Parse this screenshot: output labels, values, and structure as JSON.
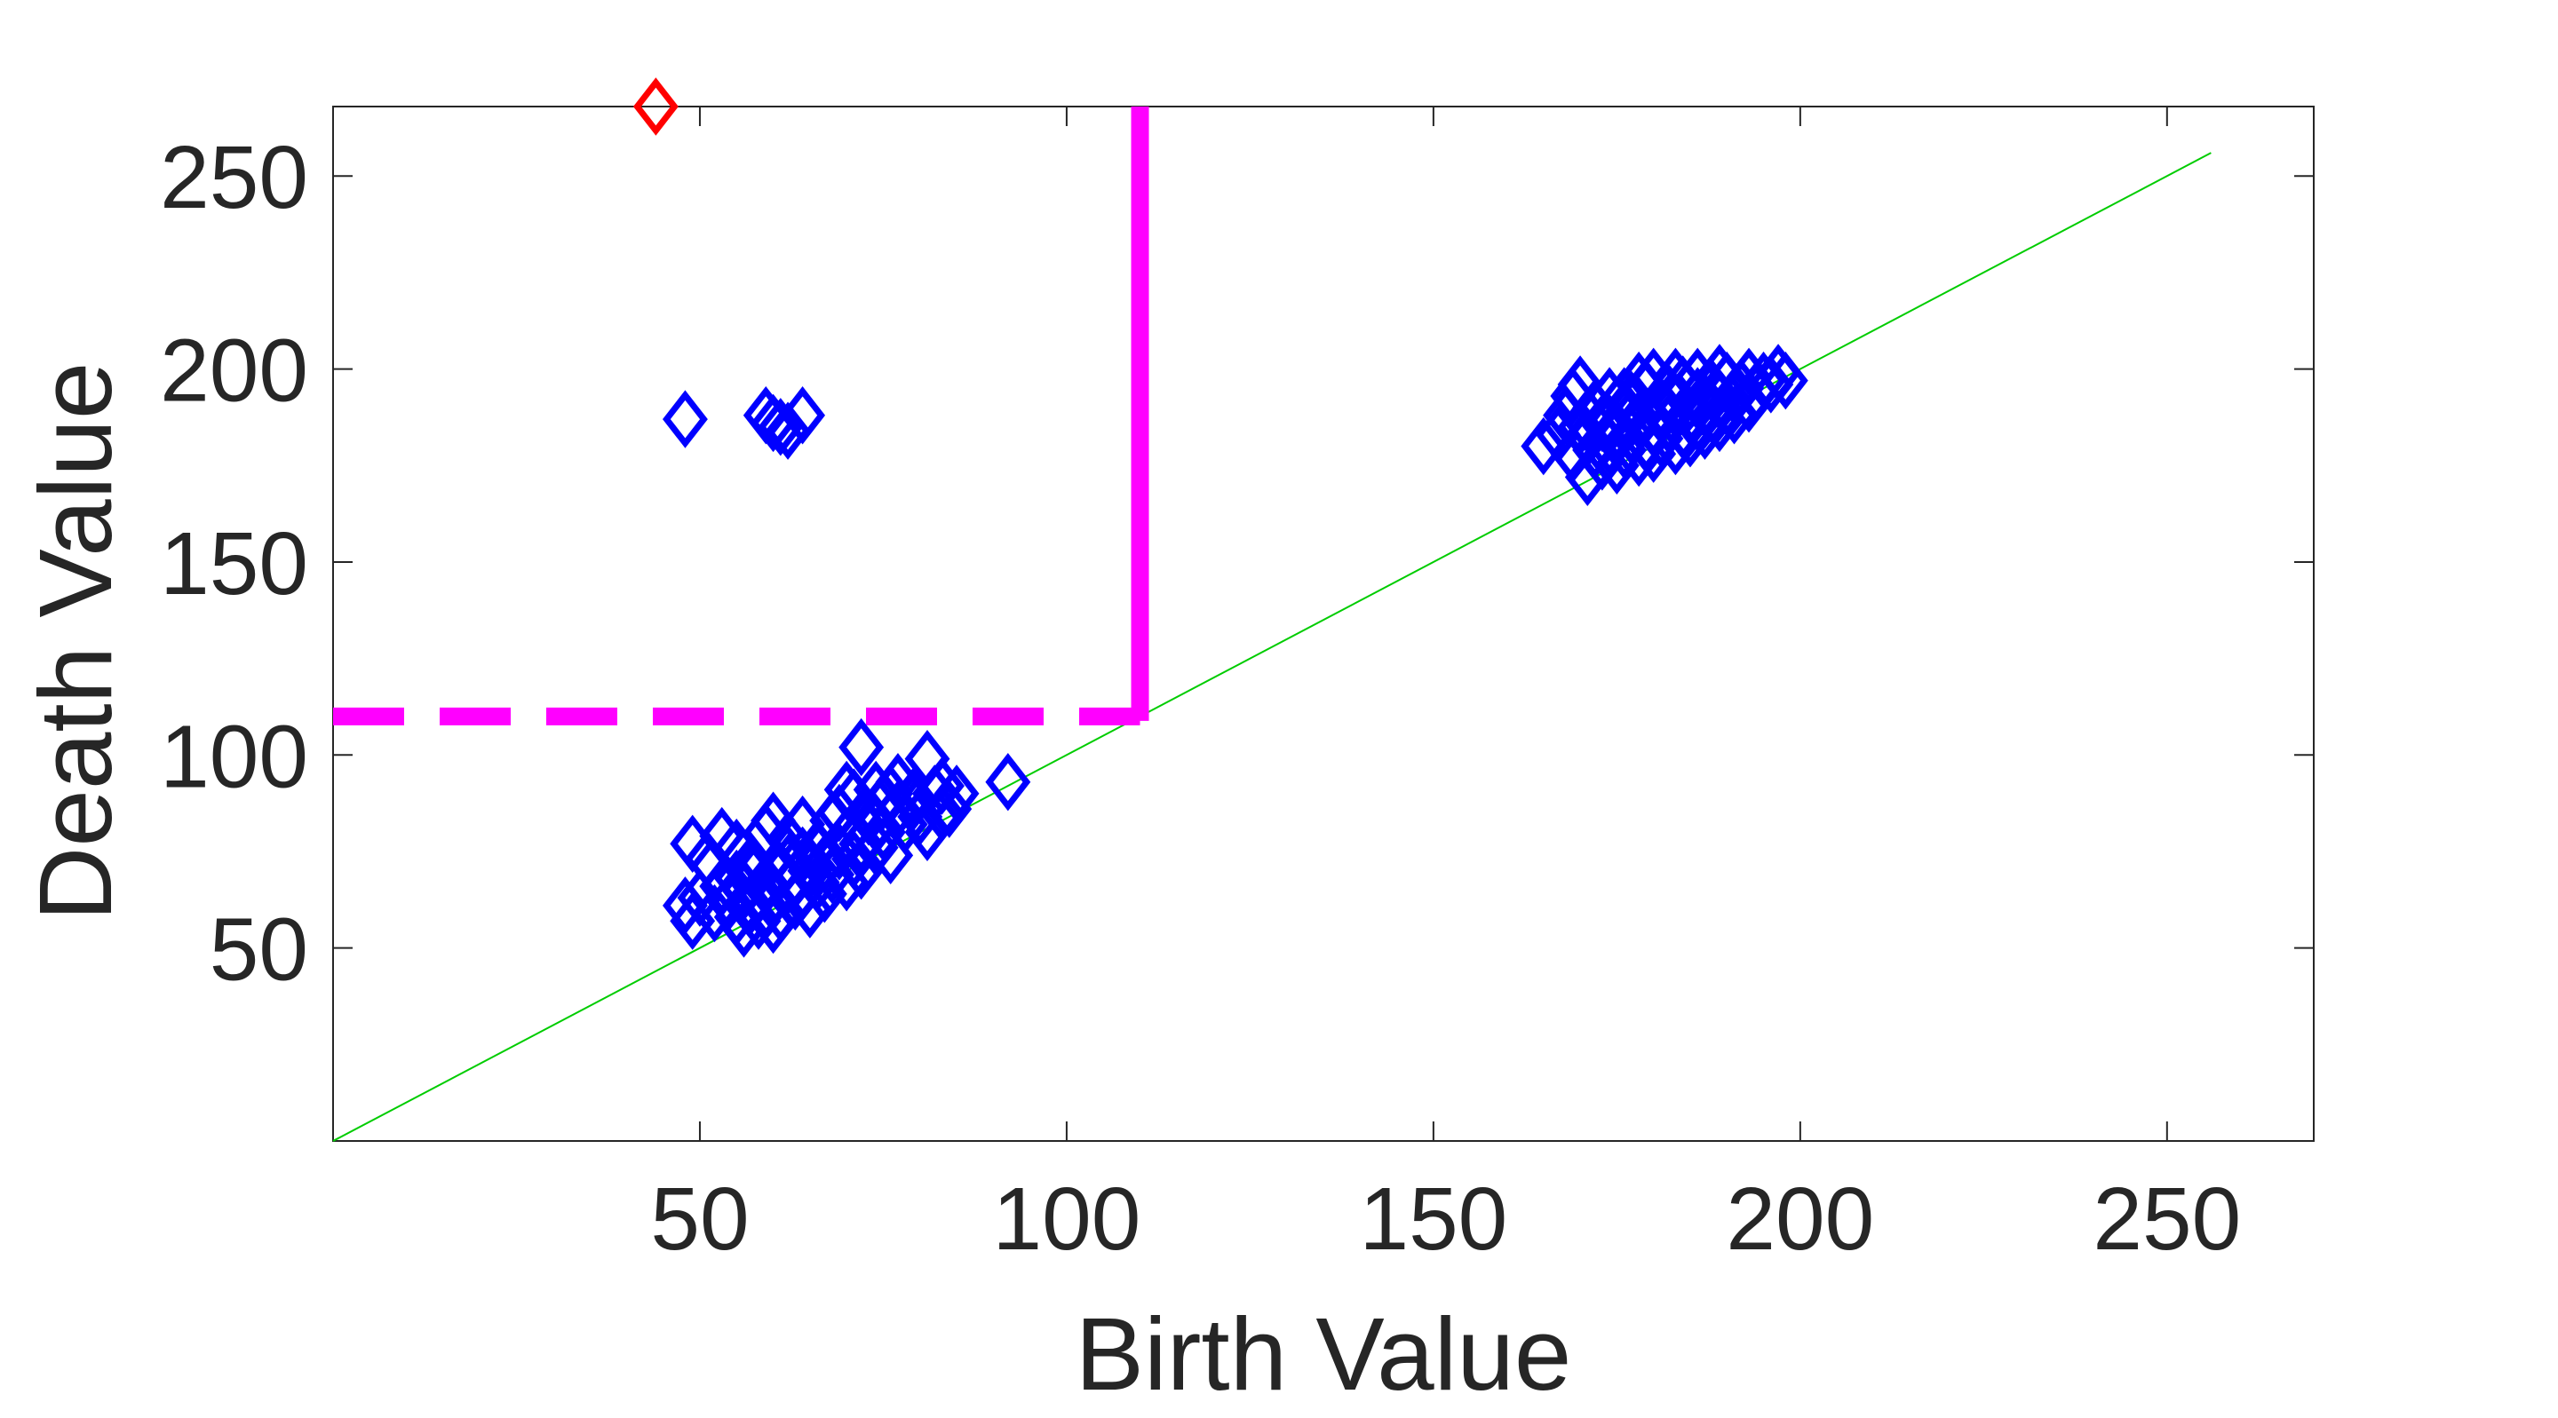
{
  "chart_data": {
    "type": "scatter",
    "title": "",
    "xlabel": "Birth Value",
    "ylabel": "Death Value",
    "xlim": [
      0,
      270
    ],
    "ylim": [
      0,
      268
    ],
    "xticks": [
      50,
      100,
      150,
      200,
      250
    ],
    "yticks": [
      50,
      100,
      150,
      200,
      250
    ],
    "grid": false,
    "legend": "none",
    "marker": "diamond",
    "colors": {
      "points": "#0000ff",
      "highlight": "#ff0000",
      "threshold": "#ff00ff",
      "diagonal": "#00cc00",
      "axes": "#262626"
    },
    "diagonal": {
      "from": [
        0,
        0
      ],
      "to": [
        256,
        256
      ]
    },
    "threshold_lines": [
      {
        "style": "dashed",
        "orientation": "horizontal",
        "y": 110,
        "x_range": [
          0,
          110
        ]
      },
      {
        "style": "solid",
        "orientation": "vertical",
        "x": 110,
        "y_range": [
          110,
          268
        ]
      }
    ],
    "series": [
      {
        "points": [
          [
            48,
            61
          ],
          [
            49,
            57
          ],
          [
            50,
            63
          ],
          [
            52,
            59
          ],
          [
            53,
            66
          ],
          [
            54,
            62
          ],
          [
            55,
            58
          ],
          [
            55,
            68
          ],
          [
            56,
            55
          ],
          [
            56,
            65
          ],
          [
            57,
            61
          ],
          [
            57,
            70
          ],
          [
            58,
            57
          ],
          [
            58,
            64
          ],
          [
            59,
            60
          ],
          [
            59,
            67
          ],
          [
            60,
            56
          ],
          [
            60,
            63
          ],
          [
            61,
            70
          ],
          [
            61,
            59
          ],
          [
            62,
            66
          ],
          [
            62,
            72
          ],
          [
            63,
            62
          ],
          [
            63,
            68
          ],
          [
            64,
            65
          ],
          [
            64,
            74
          ],
          [
            65,
            60
          ],
          [
            65,
            70
          ],
          [
            66,
            67
          ],
          [
            67,
            72
          ],
          [
            67,
            64
          ],
          [
            68,
            69
          ],
          [
            69,
            75
          ],
          [
            70,
            67
          ],
          [
            70,
            79
          ],
          [
            71,
            73
          ],
          [
            72,
            77
          ],
          [
            72,
            70
          ],
          [
            73,
            84
          ],
          [
            74,
            76
          ],
          [
            75,
            80
          ],
          [
            76,
            74
          ],
          [
            77,
            86
          ],
          [
            78,
            82
          ],
          [
            79,
            88
          ],
          [
            80,
            84
          ],
          [
            81,
            80
          ],
          [
            82,
            90
          ],
          [
            83,
            85
          ],
          [
            84,
            86
          ],
          [
            49,
            77
          ],
          [
            51,
            73
          ],
          [
            53,
            79
          ],
          [
            55,
            76
          ],
          [
            57,
            72
          ],
          [
            59,
            80
          ],
          [
            60,
            83
          ],
          [
            62,
            78
          ],
          [
            64,
            82
          ],
          [
            66,
            76
          ],
          [
            69,
            85
          ],
          [
            71,
            89
          ],
          [
            72,
            102
          ],
          [
            74,
            91
          ],
          [
            75,
            88
          ],
          [
            77,
            93
          ],
          [
            79,
            89
          ],
          [
            81,
            99
          ],
          [
            83,
            92
          ],
          [
            85,
            90
          ],
          [
            92,
            93
          ],
          [
            70,
            91
          ],
          [
            74,
            82
          ],
          [
            76,
            90
          ],
          [
            68,
            83
          ]
        ]
      },
      {
        "points": [
          [
            48,
            187
          ],
          [
            59,
            188
          ],
          [
            60,
            186
          ],
          [
            61,
            185
          ],
          [
            62,
            184
          ],
          [
            64,
            188
          ]
        ]
      },
      {
        "points": [
          [
            165,
            180
          ],
          [
            167,
            183
          ],
          [
            168,
            188
          ],
          [
            169,
            193
          ],
          [
            170,
            196
          ],
          [
            169,
            178
          ],
          [
            170,
            185
          ],
          [
            171,
            172
          ],
          [
            171,
            182
          ],
          [
            172,
            190
          ],
          [
            173,
            176
          ],
          [
            173,
            186
          ],
          [
            174,
            180
          ],
          [
            174,
            193
          ],
          [
            175,
            175
          ],
          [
            175,
            184
          ],
          [
            176,
            188
          ],
          [
            176,
            179
          ],
          [
            177,
            192
          ],
          [
            177,
            183
          ],
          [
            178,
            177
          ],
          [
            178,
            187
          ],
          [
            179,
            181
          ],
          [
            179,
            195
          ],
          [
            180,
            185
          ],
          [
            180,
            178
          ],
          [
            181,
            190
          ],
          [
            181,
            182
          ],
          [
            182,
            194
          ],
          [
            182,
            186
          ],
          [
            183,
            180
          ],
          [
            183,
            191
          ],
          [
            184,
            184
          ],
          [
            184,
            196
          ],
          [
            185,
            188
          ],
          [
            185,
            182
          ],
          [
            186,
            193
          ],
          [
            186,
            186
          ],
          [
            187,
            190
          ],
          [
            187,
            184
          ],
          [
            188,
            195
          ],
          [
            188,
            188
          ],
          [
            189,
            192
          ],
          [
            189,
            186
          ],
          [
            190,
            197
          ],
          [
            190,
            190
          ],
          [
            191,
            193
          ],
          [
            191,
            188
          ],
          [
            192,
            195
          ],
          [
            193,
            191
          ],
          [
            193,
            198
          ],
          [
            194,
            194
          ],
          [
            195,
            197
          ],
          [
            196,
            196
          ],
          [
            197,
            199
          ],
          [
            198,
            197
          ],
          [
            172,
            179
          ],
          [
            174,
            186
          ],
          [
            176,
            193
          ],
          [
            178,
            197
          ],
          [
            180,
            198
          ],
          [
            183,
            198
          ],
          [
            186,
            198
          ],
          [
            189,
            199
          ]
        ]
      },
      {
        "points": [
          [
            44,
            268
          ]
        ]
      }
    ]
  }
}
